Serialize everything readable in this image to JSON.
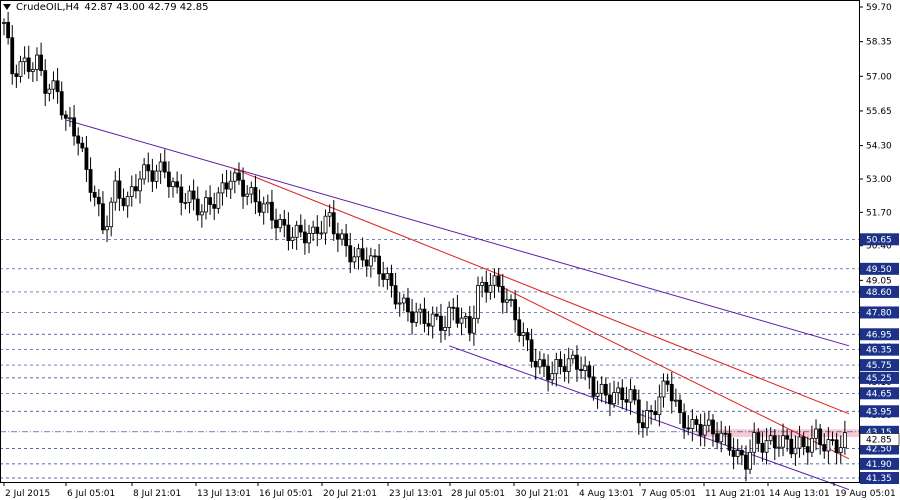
{
  "header": {
    "symbol": "CrudeOIL,H4",
    "ohlc": "42.87 43.00 42.79 42.85"
  },
  "colors": {
    "level_line": "#1f3b8a",
    "badge_bg": "#1c3288",
    "channel": "#5a1aa8",
    "fan": "#e02020",
    "zone": "#f4b6c8",
    "price": "#000000"
  },
  "chart_data": {
    "type": "candlestick",
    "ylim": [
      41.0,
      59.7
    ],
    "y_ticks": [
      {
        "value": 59.7,
        "label": "59.70"
      },
      {
        "value": 58.35,
        "label": "58.35"
      },
      {
        "value": 57.0,
        "label": "57.00"
      },
      {
        "value": 55.65,
        "label": "55.65"
      },
      {
        "value": 54.3,
        "label": "54.30"
      },
      {
        "value": 53.0,
        "label": "53.00"
      },
      {
        "value": 51.7,
        "label": "51.70"
      },
      {
        "value": 50.4,
        "label": "50.40"
      },
      {
        "value": 49.05,
        "label": "49.05"
      },
      {
        "value": 47.75,
        "label": "47.75"
      },
      {
        "value": 46.45,
        "label": "46.45"
      },
      {
        "value": 45.1,
        "label": "45.10"
      },
      {
        "value": 43.8,
        "label": "43.80"
      },
      {
        "value": 42.45,
        "label": "42.45"
      }
    ],
    "levels": [
      50.65,
      49.5,
      48.6,
      47.8,
      46.95,
      46.35,
      45.75,
      45.25,
      44.65,
      43.95,
      43.15,
      42.5,
      41.9,
      41.35
    ],
    "level_labels": [
      "50.65",
      "49.50",
      "48.60",
      "47.80",
      "46.95",
      "46.35",
      "45.75",
      "45.25",
      "44.65",
      "43.95",
      "43.15",
      "42.50",
      "41.90",
      "41.35"
    ],
    "current_price": {
      "value": 42.85,
      "label": "42.85"
    },
    "resistance_zone": [
      42.95,
      43.25
    ],
    "x_labels": [
      "2 Jul 2015",
      "6 Jul 05:01",
      "8 Jul 21:01",
      "13 Jul 13:01",
      "16 Jul 05:01",
      "20 Jul 21:01",
      "23 Jul 13:01",
      "28 Jul 05:01",
      "30 Jul 21:01",
      "4 Aug 13:01",
      "7 Aug 05:01",
      "11 Aug 21:01",
      "14 Aug 13:01",
      "19 Aug 05:01"
    ],
    "n_bars": 205,
    "trend_lines": [
      {
        "name": "channel-upper",
        "from": [
          15,
          55.3
        ],
        "to": [
          205,
          46.5
        ]
      },
      {
        "name": "channel-lower",
        "from": [
          108,
          46.5
        ],
        "to": [
          205,
          40.9
        ]
      },
      {
        "name": "fan-line-1",
        "from": [
          55,
          53.45
        ],
        "to": [
          205,
          43.85
        ]
      },
      {
        "name": "fan-line-2",
        "from": [
          120,
          48.85
        ],
        "to": [
          205,
          42.1
        ]
      }
    ],
    "price_path": [
      [
        0,
        59.1
      ],
      [
        2,
        57.0
      ],
      [
        6,
        57.3
      ],
      [
        8,
        57.6
      ],
      [
        10,
        56.9
      ],
      [
        13,
        56.6
      ],
      [
        15,
        55.2
      ],
      [
        18,
        54.4
      ],
      [
        20,
        53.0
      ],
      [
        22,
        52.4
      ],
      [
        24,
        51.2
      ],
      [
        27,
        52.8
      ],
      [
        30,
        52.0
      ],
      [
        33,
        52.9
      ],
      [
        36,
        53.2
      ],
      [
        39,
        53.6
      ],
      [
        42,
        52.6
      ],
      [
        45,
        52.1
      ],
      [
        48,
        51.5
      ],
      [
        52,
        52.4
      ],
      [
        55,
        53.4
      ],
      [
        58,
        52.7
      ],
      [
        61,
        51.9
      ],
      [
        64,
        51.6
      ],
      [
        68,
        51.2
      ],
      [
        72,
        51.0
      ],
      [
        75,
        50.6
      ],
      [
        79,
        51.3
      ],
      [
        82,
        50.7
      ],
      [
        85,
        50.2
      ],
      [
        88,
        49.9
      ],
      [
        91,
        49.3
      ],
      [
        94,
        48.6
      ],
      [
        97,
        48.2
      ],
      [
        100,
        47.9
      ],
      [
        104,
        47.3
      ],
      [
        107,
        47.1
      ],
      [
        109,
        47.9
      ],
      [
        113,
        47.4
      ],
      [
        115,
        48.8
      ],
      [
        118,
        48.9
      ],
      [
        121,
        48.3
      ],
      [
        124,
        47.6
      ],
      [
        127,
        46.7
      ],
      [
        130,
        45.8
      ],
      [
        133,
        45.3
      ],
      [
        136,
        45.6
      ],
      [
        140,
        45.9
      ],
      [
        143,
        45.1
      ],
      [
        146,
        44.6
      ],
      [
        149,
        44.3
      ],
      [
        152,
        44.4
      ],
      [
        155,
        43.6
      ],
      [
        158,
        44.4
      ],
      [
        161,
        45.1
      ],
      [
        164,
        43.4
      ],
      [
        167,
        43.2
      ],
      [
        170,
        43.6
      ],
      [
        173,
        43.3
      ],
      [
        176,
        42.6
      ],
      [
        178,
        41.9
      ],
      [
        180,
        41.8
      ],
      [
        182,
        42.7
      ],
      [
        185,
        42.9
      ],
      [
        188,
        43.0
      ],
      [
        191,
        42.5
      ],
      [
        194,
        42.3
      ],
      [
        197,
        42.9
      ],
      [
        200,
        42.85
      ],
      [
        204,
        42.85
      ]
    ]
  }
}
